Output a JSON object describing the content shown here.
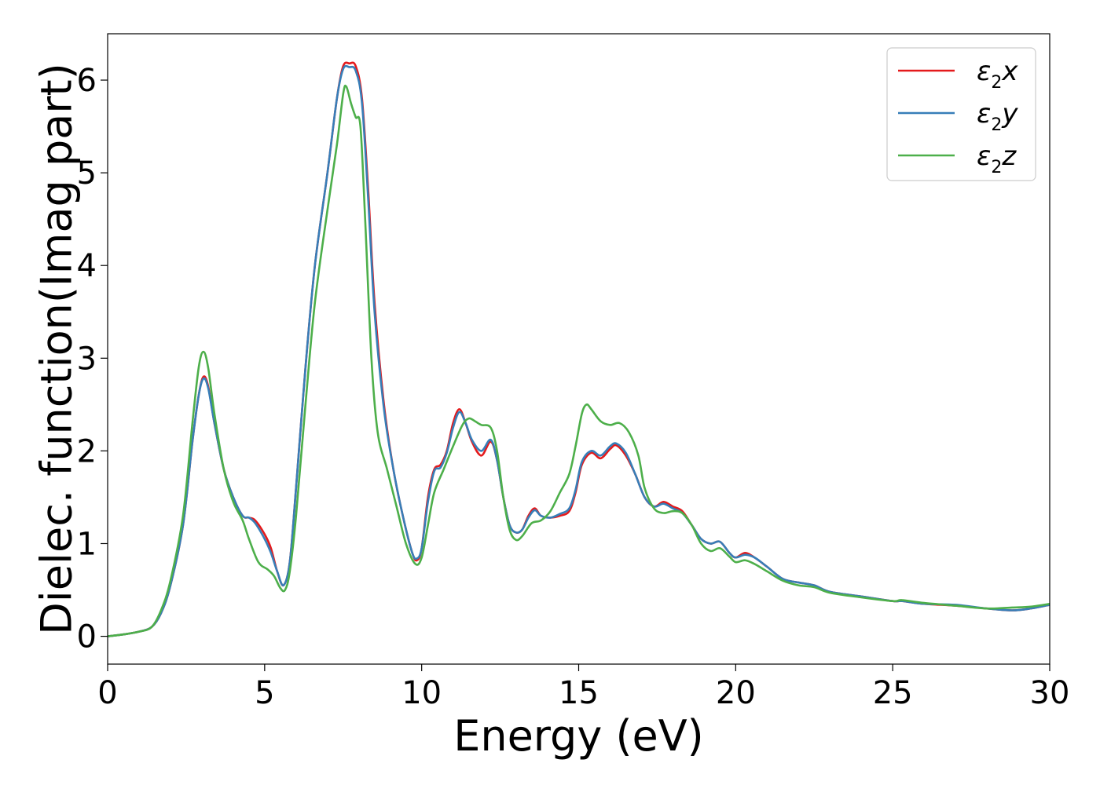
{
  "chart_data": {
    "type": "line",
    "xlabel": "Energy (eV)",
    "ylabel": "Dielec. function(Imag part)",
    "xlim": [
      0,
      30
    ],
    "ylim": [
      -0.3,
      6.5
    ],
    "xticks": [
      0,
      5,
      10,
      15,
      20,
      25,
      30
    ],
    "yticks": [
      0,
      1,
      2,
      3,
      4,
      5,
      6
    ],
    "grid": false,
    "legend_position": "top-right",
    "series": [
      {
        "name": "ε₂x",
        "legend": {
          "base": "ε",
          "sub": "2",
          "tail": "x"
        },
        "color": "#e41a1c",
        "points": [
          [
            0,
            0
          ],
          [
            0.5,
            0.02
          ],
          [
            1,
            0.05
          ],
          [
            1.4,
            0.1
          ],
          [
            1.7,
            0.25
          ],
          [
            2,
            0.55
          ],
          [
            2.4,
            1.2
          ],
          [
            2.7,
            2.1
          ],
          [
            2.9,
            2.6
          ],
          [
            3.05,
            2.8
          ],
          [
            3.2,
            2.7
          ],
          [
            3.4,
            2.3
          ],
          [
            3.7,
            1.8
          ],
          [
            4,
            1.5
          ],
          [
            4.3,
            1.3
          ],
          [
            4.5,
            1.28
          ],
          [
            4.7,
            1.25
          ],
          [
            5,
            1.1
          ],
          [
            5.2,
            0.95
          ],
          [
            5.4,
            0.7
          ],
          [
            5.6,
            0.55
          ],
          [
            5.8,
            0.8
          ],
          [
            6,
            1.6
          ],
          [
            6.3,
            2.9
          ],
          [
            6.6,
            4.0
          ],
          [
            7,
            5.0
          ],
          [
            7.3,
            5.8
          ],
          [
            7.5,
            6.15
          ],
          [
            7.7,
            6.18
          ],
          [
            7.9,
            6.15
          ],
          [
            8.1,
            5.8
          ],
          [
            8.3,
            4.8
          ],
          [
            8.5,
            3.6
          ],
          [
            8.8,
            2.5
          ],
          [
            9.1,
            1.8
          ],
          [
            9.4,
            1.3
          ],
          [
            9.7,
            0.9
          ],
          [
            9.85,
            0.82
          ],
          [
            10,
            0.95
          ],
          [
            10.2,
            1.5
          ],
          [
            10.4,
            1.8
          ],
          [
            10.6,
            1.85
          ],
          [
            10.8,
            2.0
          ],
          [
            11,
            2.3
          ],
          [
            11.2,
            2.45
          ],
          [
            11.4,
            2.3
          ],
          [
            11.6,
            2.1
          ],
          [
            11.9,
            1.95
          ],
          [
            12.2,
            2.1
          ],
          [
            12.4,
            1.9
          ],
          [
            12.6,
            1.5
          ],
          [
            12.8,
            1.2
          ],
          [
            13,
            1.12
          ],
          [
            13.2,
            1.15
          ],
          [
            13.4,
            1.3
          ],
          [
            13.6,
            1.38
          ],
          [
            13.8,
            1.3
          ],
          [
            14.1,
            1.28
          ],
          [
            14.4,
            1.3
          ],
          [
            14.7,
            1.35
          ],
          [
            14.9,
            1.55
          ],
          [
            15.1,
            1.85
          ],
          [
            15.4,
            1.98
          ],
          [
            15.7,
            1.92
          ],
          [
            16,
            2.02
          ],
          [
            16.2,
            2.06
          ],
          [
            16.5,
            1.95
          ],
          [
            16.8,
            1.75
          ],
          [
            17.1,
            1.5
          ],
          [
            17.4,
            1.4
          ],
          [
            17.7,
            1.45
          ],
          [
            18,
            1.4
          ],
          [
            18.3,
            1.35
          ],
          [
            18.6,
            1.2
          ],
          [
            18.9,
            1.05
          ],
          [
            19.2,
            1.0
          ],
          [
            19.5,
            1.02
          ],
          [
            19.8,
            0.9
          ],
          [
            20,
            0.85
          ],
          [
            20.3,
            0.9
          ],
          [
            20.6,
            0.85
          ],
          [
            21,
            0.75
          ],
          [
            21.5,
            0.62
          ],
          [
            22,
            0.58
          ],
          [
            22.5,
            0.55
          ],
          [
            23,
            0.48
          ],
          [
            24,
            0.43
          ],
          [
            25,
            0.38
          ],
          [
            25.3,
            0.38
          ],
          [
            26,
            0.35
          ],
          [
            27,
            0.33
          ],
          [
            28,
            0.3
          ],
          [
            28.8,
            0.28
          ],
          [
            29.4,
            0.3
          ],
          [
            30,
            0.34
          ]
        ]
      },
      {
        "name": "ε₂y",
        "legend": {
          "base": "ε",
          "sub": "2",
          "tail": "y"
        },
        "color": "#377eb8",
        "points": [
          [
            0,
            0
          ],
          [
            0.5,
            0.02
          ],
          [
            1,
            0.05
          ],
          [
            1.4,
            0.1
          ],
          [
            1.7,
            0.25
          ],
          [
            2,
            0.55
          ],
          [
            2.4,
            1.2
          ],
          [
            2.7,
            2.1
          ],
          [
            2.9,
            2.6
          ],
          [
            3.05,
            2.78
          ],
          [
            3.2,
            2.68
          ],
          [
            3.4,
            2.3
          ],
          [
            3.7,
            1.8
          ],
          [
            4,
            1.5
          ],
          [
            4.3,
            1.3
          ],
          [
            4.5,
            1.28
          ],
          [
            4.7,
            1.22
          ],
          [
            5,
            1.05
          ],
          [
            5.2,
            0.9
          ],
          [
            5.4,
            0.7
          ],
          [
            5.6,
            0.55
          ],
          [
            5.8,
            0.8
          ],
          [
            6,
            1.6
          ],
          [
            6.3,
            2.9
          ],
          [
            6.6,
            4.0
          ],
          [
            7,
            5.0
          ],
          [
            7.3,
            5.8
          ],
          [
            7.5,
            6.12
          ],
          [
            7.7,
            6.14
          ],
          [
            7.9,
            6.1
          ],
          [
            8.1,
            5.75
          ],
          [
            8.3,
            4.7
          ],
          [
            8.5,
            3.5
          ],
          [
            8.8,
            2.45
          ],
          [
            9.1,
            1.8
          ],
          [
            9.4,
            1.3
          ],
          [
            9.7,
            0.9
          ],
          [
            9.85,
            0.84
          ],
          [
            10,
            0.95
          ],
          [
            10.2,
            1.45
          ],
          [
            10.4,
            1.78
          ],
          [
            10.6,
            1.82
          ],
          [
            10.8,
            1.98
          ],
          [
            11,
            2.25
          ],
          [
            11.2,
            2.42
          ],
          [
            11.4,
            2.3
          ],
          [
            11.6,
            2.12
          ],
          [
            11.9,
            2.0
          ],
          [
            12.2,
            2.12
          ],
          [
            12.4,
            1.9
          ],
          [
            12.6,
            1.5
          ],
          [
            12.8,
            1.2
          ],
          [
            13,
            1.12
          ],
          [
            13.2,
            1.15
          ],
          [
            13.4,
            1.28
          ],
          [
            13.6,
            1.36
          ],
          [
            13.8,
            1.3
          ],
          [
            14.1,
            1.28
          ],
          [
            14.4,
            1.32
          ],
          [
            14.7,
            1.38
          ],
          [
            14.9,
            1.58
          ],
          [
            15.1,
            1.88
          ],
          [
            15.4,
            2.0
          ],
          [
            15.7,
            1.95
          ],
          [
            16,
            2.05
          ],
          [
            16.2,
            2.08
          ],
          [
            16.5,
            1.98
          ],
          [
            16.8,
            1.75
          ],
          [
            17.1,
            1.5
          ],
          [
            17.4,
            1.4
          ],
          [
            17.7,
            1.43
          ],
          [
            18,
            1.38
          ],
          [
            18.3,
            1.33
          ],
          [
            18.6,
            1.2
          ],
          [
            18.9,
            1.05
          ],
          [
            19.2,
            1.0
          ],
          [
            19.5,
            1.02
          ],
          [
            19.8,
            0.9
          ],
          [
            20,
            0.85
          ],
          [
            20.3,
            0.88
          ],
          [
            20.6,
            0.85
          ],
          [
            21,
            0.75
          ],
          [
            21.5,
            0.62
          ],
          [
            22,
            0.58
          ],
          [
            22.5,
            0.55
          ],
          [
            23,
            0.48
          ],
          [
            24,
            0.43
          ],
          [
            25,
            0.38
          ],
          [
            25.3,
            0.38
          ],
          [
            26,
            0.35
          ],
          [
            27,
            0.34
          ],
          [
            28,
            0.3
          ],
          [
            28.8,
            0.28
          ],
          [
            29.4,
            0.3
          ],
          [
            30,
            0.34
          ]
        ]
      },
      {
        "name": "ε₂z",
        "legend": {
          "base": "ε",
          "sub": "2",
          "tail": "z"
        },
        "color": "#4daf4a",
        "points": [
          [
            0,
            0
          ],
          [
            0.5,
            0.02
          ],
          [
            1,
            0.05
          ],
          [
            1.4,
            0.1
          ],
          [
            1.7,
            0.28
          ],
          [
            2,
            0.6
          ],
          [
            2.4,
            1.3
          ],
          [
            2.7,
            2.3
          ],
          [
            2.9,
            2.9
          ],
          [
            3.05,
            3.07
          ],
          [
            3.2,
            2.9
          ],
          [
            3.4,
            2.4
          ],
          [
            3.7,
            1.8
          ],
          [
            4,
            1.45
          ],
          [
            4.3,
            1.25
          ],
          [
            4.5,
            1.05
          ],
          [
            4.8,
            0.8
          ],
          [
            5.1,
            0.72
          ],
          [
            5.3,
            0.65
          ],
          [
            5.5,
            0.52
          ],
          [
            5.65,
            0.5
          ],
          [
            5.8,
            0.7
          ],
          [
            6,
            1.3
          ],
          [
            6.3,
            2.5
          ],
          [
            6.6,
            3.6
          ],
          [
            7,
            4.6
          ],
          [
            7.3,
            5.3
          ],
          [
            7.5,
            5.85
          ],
          [
            7.6,
            5.93
          ],
          [
            7.75,
            5.75
          ],
          [
            7.9,
            5.6
          ],
          [
            8.05,
            5.5
          ],
          [
            8.2,
            4.5
          ],
          [
            8.4,
            3.0
          ],
          [
            8.6,
            2.2
          ],
          [
            8.9,
            1.8
          ],
          [
            9.2,
            1.4
          ],
          [
            9.5,
            1.0
          ],
          [
            9.8,
            0.78
          ],
          [
            10,
            0.85
          ],
          [
            10.2,
            1.2
          ],
          [
            10.4,
            1.55
          ],
          [
            10.7,
            1.8
          ],
          [
            11,
            2.05
          ],
          [
            11.3,
            2.28
          ],
          [
            11.5,
            2.35
          ],
          [
            11.7,
            2.32
          ],
          [
            11.9,
            2.28
          ],
          [
            12.2,
            2.25
          ],
          [
            12.4,
            2.0
          ],
          [
            12.6,
            1.5
          ],
          [
            12.8,
            1.15
          ],
          [
            13,
            1.04
          ],
          [
            13.2,
            1.08
          ],
          [
            13.5,
            1.22
          ],
          [
            13.8,
            1.25
          ],
          [
            14.1,
            1.35
          ],
          [
            14.4,
            1.55
          ],
          [
            14.7,
            1.75
          ],
          [
            14.9,
            2.05
          ],
          [
            15.1,
            2.4
          ],
          [
            15.25,
            2.5
          ],
          [
            15.4,
            2.45
          ],
          [
            15.7,
            2.32
          ],
          [
            16,
            2.28
          ],
          [
            16.3,
            2.3
          ],
          [
            16.6,
            2.2
          ],
          [
            16.9,
            1.95
          ],
          [
            17.1,
            1.6
          ],
          [
            17.4,
            1.38
          ],
          [
            17.7,
            1.33
          ],
          [
            18,
            1.35
          ],
          [
            18.3,
            1.33
          ],
          [
            18.6,
            1.2
          ],
          [
            18.9,
            1.0
          ],
          [
            19.2,
            0.92
          ],
          [
            19.5,
            0.95
          ],
          [
            19.8,
            0.86
          ],
          [
            20,
            0.8
          ],
          [
            20.3,
            0.82
          ],
          [
            20.6,
            0.78
          ],
          [
            21,
            0.7
          ],
          [
            21.5,
            0.6
          ],
          [
            22,
            0.55
          ],
          [
            22.5,
            0.53
          ],
          [
            23,
            0.47
          ],
          [
            24,
            0.42
          ],
          [
            25,
            0.38
          ],
          [
            25.3,
            0.39
          ],
          [
            26,
            0.36
          ],
          [
            27,
            0.33
          ],
          [
            28,
            0.3
          ],
          [
            28.8,
            0.31
          ],
          [
            29.4,
            0.32
          ],
          [
            30,
            0.35
          ]
        ]
      }
    ]
  }
}
